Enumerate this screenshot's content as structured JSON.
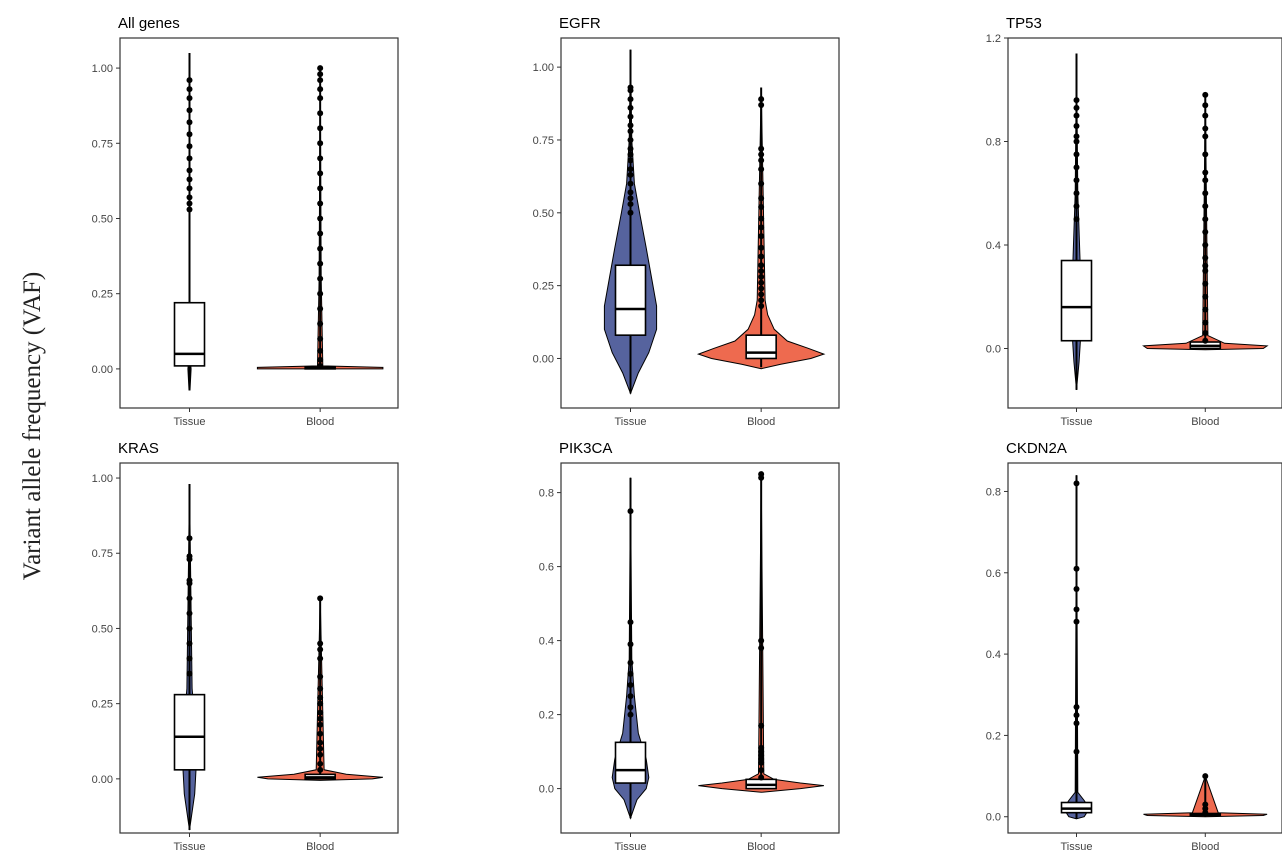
{
  "figure": {
    "ylabel": "Variant allele frequency (VAF)"
  },
  "colors": {
    "tissue": "#56639e",
    "blood": "#ee6a4f",
    "box": "#ffffff",
    "ink": "#000000"
  },
  "chart_data": [
    {
      "type": "violin",
      "title": "All genes",
      "categories": [
        "Tissue",
        "Blood"
      ],
      "ylim": [
        -0.13,
        1.1
      ],
      "yticks": [
        0,
        0.25,
        0.5,
        0.75,
        1.0
      ],
      "ytick_labels": [
        "0.00",
        "0.25",
        "0.50",
        "0.75",
        "1.00"
      ],
      "series": [
        {
          "whisker": [
            -0.07,
            1.05
          ],
          "box": {
            "q1": 0.01,
            "median": 0.05,
            "q3": 0.22
          },
          "violin": [
            [
              -0.07,
              0.004
            ],
            [
              0.0,
              0.012
            ],
            [
              0.02,
              0.008
            ],
            [
              0.1,
              0.003
            ],
            [
              0.5,
              0.002
            ],
            [
              1.05,
              0.0
            ]
          ],
          "outliers": [
            0.53,
            0.55,
            0.57,
            0.6,
            0.63,
            0.66,
            0.7,
            0.74,
            0.78,
            0.82,
            0.86,
            0.9,
            0.93,
            0.96
          ]
        },
        {
          "whisker": [
            0.0,
            1.0
          ],
          "box": {
            "q1": 0.0,
            "median": 0.003,
            "q3": 0.006
          },
          "violin": [
            [
              0.0,
              0.48
            ],
            [
              0.005,
              0.48
            ],
            [
              0.01,
              0.02
            ],
            [
              0.3,
              0.008
            ],
            [
              1.0,
              0.0
            ]
          ],
          "outliers": [
            0.01,
            0.03,
            0.06,
            0.1,
            0.15,
            0.2,
            0.25,
            0.3,
            0.35,
            0.4,
            0.45,
            0.5,
            0.55,
            0.6,
            0.65,
            0.7,
            0.75,
            0.8,
            0.85,
            0.9,
            0.93,
            0.96,
            0.98,
            1.0
          ]
        }
      ]
    },
    {
      "type": "violin",
      "title": "EGFR",
      "categories": [
        "Tissue",
        "Blood"
      ],
      "ylim": [
        -0.17,
        1.1
      ],
      "yticks": [
        0,
        0.25,
        0.5,
        0.75,
        1.0
      ],
      "ytick_labels": [
        "0.00",
        "0.25",
        "0.50",
        "0.75",
        "1.00"
      ],
      "series": [
        {
          "whisker": [
            -0.12,
            1.06
          ],
          "box": {
            "q1": 0.08,
            "median": 0.17,
            "q3": 0.32
          },
          "violin": [
            [
              -0.12,
              0.0
            ],
            [
              -0.05,
              0.06
            ],
            [
              0.02,
              0.14
            ],
            [
              0.1,
              0.2
            ],
            [
              0.18,
              0.2
            ],
            [
              0.28,
              0.16
            ],
            [
              0.38,
              0.12
            ],
            [
              0.5,
              0.07
            ],
            [
              0.6,
              0.03
            ],
            [
              0.75,
              0.01
            ],
            [
              1.06,
              0.0
            ]
          ],
          "outliers": [
            0.5,
            0.53,
            0.55,
            0.57,
            0.6,
            0.63,
            0.65,
            0.68,
            0.7,
            0.72,
            0.75,
            0.78,
            0.8,
            0.83,
            0.86,
            0.89,
            0.92,
            0.93
          ]
        },
        {
          "whisker": [
            -0.03,
            0.93
          ],
          "box": {
            "q1": 0.0,
            "median": 0.02,
            "q3": 0.08
          },
          "violin": [
            [
              -0.035,
              0.0
            ],
            [
              -0.02,
              0.15
            ],
            [
              0.0,
              0.38
            ],
            [
              0.015,
              0.48
            ],
            [
              0.035,
              0.36
            ],
            [
              0.06,
              0.2
            ],
            [
              0.1,
              0.1
            ],
            [
              0.15,
              0.05
            ],
            [
              0.2,
              0.03
            ],
            [
              0.93,
              0.0
            ]
          ],
          "outliers": [
            0.18,
            0.2,
            0.22,
            0.24,
            0.26,
            0.28,
            0.3,
            0.32,
            0.35,
            0.38,
            0.42,
            0.45,
            0.48,
            0.52,
            0.55,
            0.6,
            0.65,
            0.68,
            0.7,
            0.72,
            0.87,
            0.89
          ]
        }
      ]
    },
    {
      "type": "violin",
      "title": "TP53",
      "categories": [
        "Tissue",
        "Blood"
      ],
      "ylim": [
        -0.23,
        1.2
      ],
      "yticks": [
        0,
        0.4,
        0.8,
        1.2
      ],
      "ytick_labels": [
        "0.0",
        "0.4",
        "0.8",
        "1.2"
      ],
      "series": [
        {
          "whisker": [
            -0.16,
            1.14
          ],
          "box": {
            "q1": 0.03,
            "median": 0.16,
            "q3": 0.34
          },
          "violin": [
            [
              -0.16,
              0.0
            ],
            [
              -0.05,
              0.02
            ],
            [
              0.03,
              0.03
            ],
            [
              0.3,
              0.03
            ],
            [
              0.6,
              0.01
            ],
            [
              1.14,
              0.0
            ]
          ],
          "outliers": [
            0.5,
            0.55,
            0.6,
            0.65,
            0.7,
            0.75,
            0.8,
            0.82,
            0.86,
            0.9,
            0.93,
            0.96
          ]
        },
        {
          "whisker": [
            0.0,
            0.98
          ],
          "box": {
            "q1": 0.0,
            "median": 0.01,
            "q3": 0.025
          },
          "violin": [
            [
              -0.005,
              0.0
            ],
            [
              0.0,
              0.45
            ],
            [
              0.01,
              0.48
            ],
            [
              0.02,
              0.15
            ],
            [
              0.05,
              0.02
            ],
            [
              0.98,
              0.0
            ]
          ],
          "outliers": [
            0.03,
            0.06,
            0.1,
            0.15,
            0.2,
            0.25,
            0.3,
            0.32,
            0.35,
            0.4,
            0.45,
            0.5,
            0.55,
            0.6,
            0.65,
            0.68,
            0.75,
            0.82,
            0.85,
            0.9,
            0.94,
            0.98
          ]
        }
      ]
    },
    {
      "type": "violin",
      "title": "KRAS",
      "categories": [
        "Tissue",
        "Blood"
      ],
      "ylim": [
        -0.18,
        1.05
      ],
      "yticks": [
        0,
        0.25,
        0.5,
        0.75,
        1.0
      ],
      "ytick_labels": [
        "0.00",
        "0.25",
        "0.50",
        "0.75",
        "1.00"
      ],
      "series": [
        {
          "whisker": [
            -0.17,
            0.98
          ],
          "box": {
            "q1": 0.03,
            "median": 0.14,
            "q3": 0.28
          },
          "violin": [
            [
              -0.17,
              0.0
            ],
            [
              -0.05,
              0.04
            ],
            [
              0.03,
              0.05
            ],
            [
              0.2,
              0.04
            ],
            [
              0.3,
              0.02
            ],
            [
              0.98,
              0.0
            ]
          ],
          "outliers": [
            0.35,
            0.4,
            0.45,
            0.5,
            0.55,
            0.6,
            0.65,
            0.66,
            0.73,
            0.74,
            0.8
          ]
        },
        {
          "whisker": [
            0.0,
            0.6
          ],
          "box": {
            "q1": 0.0,
            "median": 0.005,
            "q3": 0.015
          },
          "violin": [
            [
              -0.005,
              0.0
            ],
            [
              0.0,
              0.4
            ],
            [
              0.005,
              0.48
            ],
            [
              0.015,
              0.2
            ],
            [
              0.03,
              0.03
            ],
            [
              0.6,
              0.0
            ]
          ],
          "outliers": [
            0.03,
            0.05,
            0.08,
            0.1,
            0.12,
            0.15,
            0.18,
            0.2,
            0.22,
            0.25,
            0.27,
            0.3,
            0.34,
            0.4,
            0.43,
            0.45,
            0.6
          ]
        }
      ]
    },
    {
      "type": "violin",
      "title": "PIK3CA",
      "categories": [
        "Tissue",
        "Blood"
      ],
      "ylim": [
        -0.12,
        0.88
      ],
      "yticks": [
        0,
        0.2,
        0.4,
        0.6,
        0.8
      ],
      "ytick_labels": [
        "0.0",
        "0.2",
        "0.4",
        "0.6",
        "0.8"
      ],
      "series": [
        {
          "whisker": [
            -0.08,
            0.84
          ],
          "box": {
            "q1": 0.015,
            "median": 0.05,
            "q3": 0.125
          },
          "violin": [
            [
              -0.08,
              0.0
            ],
            [
              -0.03,
              0.05
            ],
            [
              0.0,
              0.12
            ],
            [
              0.03,
              0.14
            ],
            [
              0.08,
              0.12
            ],
            [
              0.15,
              0.06
            ],
            [
              0.25,
              0.03
            ],
            [
              0.35,
              0.01
            ],
            [
              0.84,
              0.0
            ]
          ],
          "outliers": [
            0.2,
            0.22,
            0.25,
            0.28,
            0.31,
            0.34,
            0.39,
            0.45,
            0.75
          ]
        },
        {
          "whisker": [
            0.0,
            0.85
          ],
          "box": {
            "q1": 0.0,
            "median": 0.01,
            "q3": 0.025
          },
          "violin": [
            [
              -0.01,
              0.0
            ],
            [
              0.0,
              0.3
            ],
            [
              0.008,
              0.48
            ],
            [
              0.015,
              0.3
            ],
            [
              0.025,
              0.1
            ],
            [
              0.04,
              0.02
            ],
            [
              0.85,
              0.0
            ]
          ],
          "outliers": [
            0.03,
            0.05,
            0.07,
            0.08,
            0.09,
            0.1,
            0.11,
            0.17,
            0.38,
            0.4,
            0.84,
            0.85
          ]
        }
      ]
    },
    {
      "type": "violin",
      "title": "CKDN2A",
      "categories": [
        "Tissue",
        "Blood"
      ],
      "ylim": [
        -0.04,
        0.87
      ],
      "yticks": [
        0,
        0.2,
        0.4,
        0.6,
        0.8
      ],
      "ytick_labels": [
        "0.0",
        "0.2",
        "0.4",
        "0.6",
        "0.8"
      ],
      "series": [
        {
          "whisker": [
            -0.005,
            0.84
          ],
          "box": {
            "q1": 0.01,
            "median": 0.02,
            "q3": 0.035
          },
          "violin": [
            [
              -0.005,
              0.0
            ],
            [
              0.0,
              0.06
            ],
            [
              0.02,
              0.1
            ],
            [
              0.04,
              0.06
            ],
            [
              0.06,
              0.01
            ],
            [
              0.84,
              0.0
            ]
          ],
          "outliers": [
            0.16,
            0.23,
            0.25,
            0.27,
            0.48,
            0.51,
            0.56,
            0.61,
            0.82
          ]
        },
        {
          "whisker": [
            0.0,
            0.1
          ],
          "box": {
            "q1": 0.003,
            "median": 0.005,
            "q3": 0.008
          },
          "violin": [
            [
              0.0,
              0.0
            ],
            [
              0.003,
              0.45
            ],
            [
              0.006,
              0.48
            ],
            [
              0.01,
              0.1
            ],
            [
              0.1,
              0.0
            ]
          ],
          "outliers": [
            0.01,
            0.02,
            0.03,
            0.1
          ]
        }
      ]
    }
  ]
}
